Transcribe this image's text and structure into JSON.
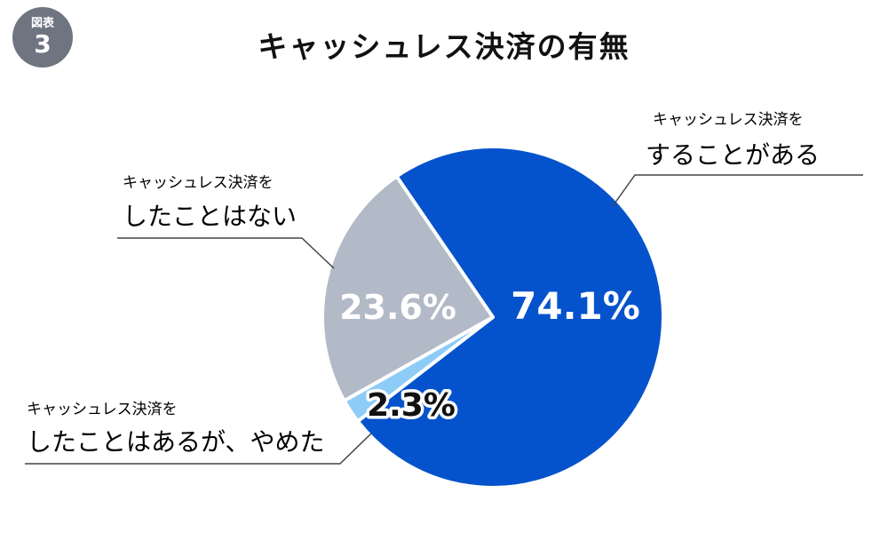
{
  "badge": {
    "label": "図表",
    "number": "3"
  },
  "chart_data": {
    "type": "pie",
    "title": "キャッシュレス決済の有無",
    "slices": [
      {
        "key": "yes",
        "line1": "キャッシュレス決済を",
        "line2": "することがある",
        "value": 74.1,
        "value_label": "74.1%",
        "color": "#0553cc"
      },
      {
        "key": "quit",
        "line1": "キャッシュレス決済を",
        "line2": "したことはあるが、やめた",
        "value": 2.3,
        "value_label": "2.3%",
        "color": "#8dccf6"
      },
      {
        "key": "never",
        "line1": "キャッシュレス決済を",
        "line2": "したことはない",
        "value": 23.6,
        "value_label": "23.6%",
        "color": "#b2bac7"
      }
    ]
  }
}
